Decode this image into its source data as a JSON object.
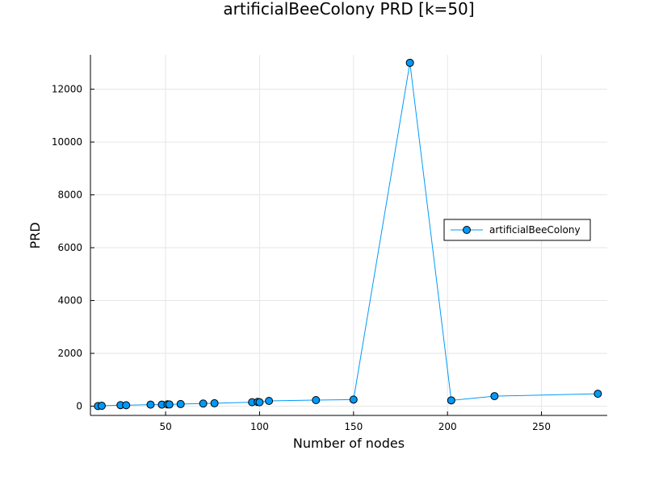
{
  "chart_data": {
    "type": "line",
    "title": "artificialBeeColony PRD [k=50]",
    "xlabel": "Number of nodes",
    "ylabel": "PRD",
    "xlim": [
      10,
      285
    ],
    "ylim": [
      -350,
      13300
    ],
    "xticks": [
      50,
      100,
      150,
      200,
      250
    ],
    "yticks": [
      0,
      2000,
      4000,
      6000,
      8000,
      10000,
      12000
    ],
    "grid": true,
    "legend_position": "right",
    "series": [
      {
        "name": "artificialBeeColony",
        "color": "#009af9",
        "marker": "circle",
        "x": [
          14,
          16,
          26,
          29,
          42,
          48,
          51,
          52,
          58,
          70,
          76,
          96,
          99,
          100,
          105,
          130,
          150,
          180,
          202,
          225,
          280
        ],
        "y": [
          5,
          15,
          40,
          35,
          60,
          60,
          70,
          65,
          80,
          100,
          110,
          150,
          160,
          150,
          200,
          230,
          250,
          13000,
          220,
          380,
          470
        ]
      }
    ]
  }
}
